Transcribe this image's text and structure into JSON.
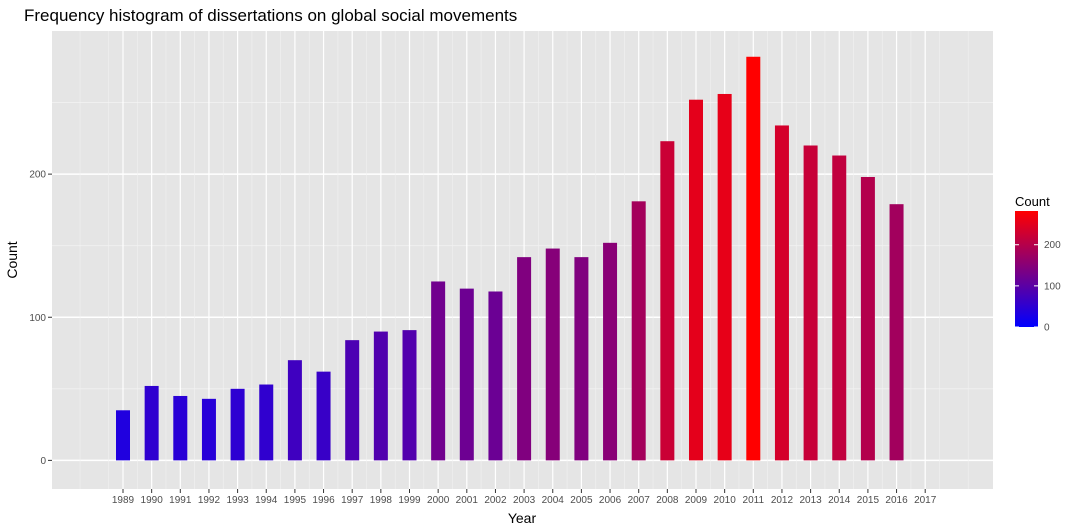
{
  "chart_data": {
    "type": "bar",
    "title": "Frequency histogram of dissertations on global social movements",
    "xlabel": "Year",
    "ylabel": "Count",
    "categories": [
      "1989",
      "1990",
      "1991",
      "1992",
      "1993",
      "1994",
      "1995",
      "1996",
      "1997",
      "1998",
      "1999",
      "2000",
      "2001",
      "2002",
      "2003",
      "2004",
      "2005",
      "2006",
      "2007",
      "2008",
      "2009",
      "2010",
      "2011",
      "2012",
      "2013",
      "2014",
      "2015",
      "2016",
      "2017"
    ],
    "values": [
      35,
      52,
      45,
      43,
      50,
      53,
      70,
      62,
      84,
      90,
      91,
      125,
      120,
      118,
      142,
      148,
      142,
      152,
      181,
      223,
      252,
      256,
      282,
      234,
      220,
      213,
      198,
      179,
      0
    ],
    "ylim": [
      -20,
      300
    ],
    "yticks": [
      0,
      100,
      200
    ],
    "grid": true,
    "legend": {
      "title": "Count",
      "position": "right",
      "labels": [
        "0",
        "100",
        "200"
      ],
      "label_values": [
        0,
        100,
        200
      ],
      "range": [
        0,
        282
      ]
    },
    "colors": {
      "low": "#0000ff",
      "high": "#ff0000",
      "panel": "#e5e5e5",
      "grid": "#ffffff"
    }
  }
}
